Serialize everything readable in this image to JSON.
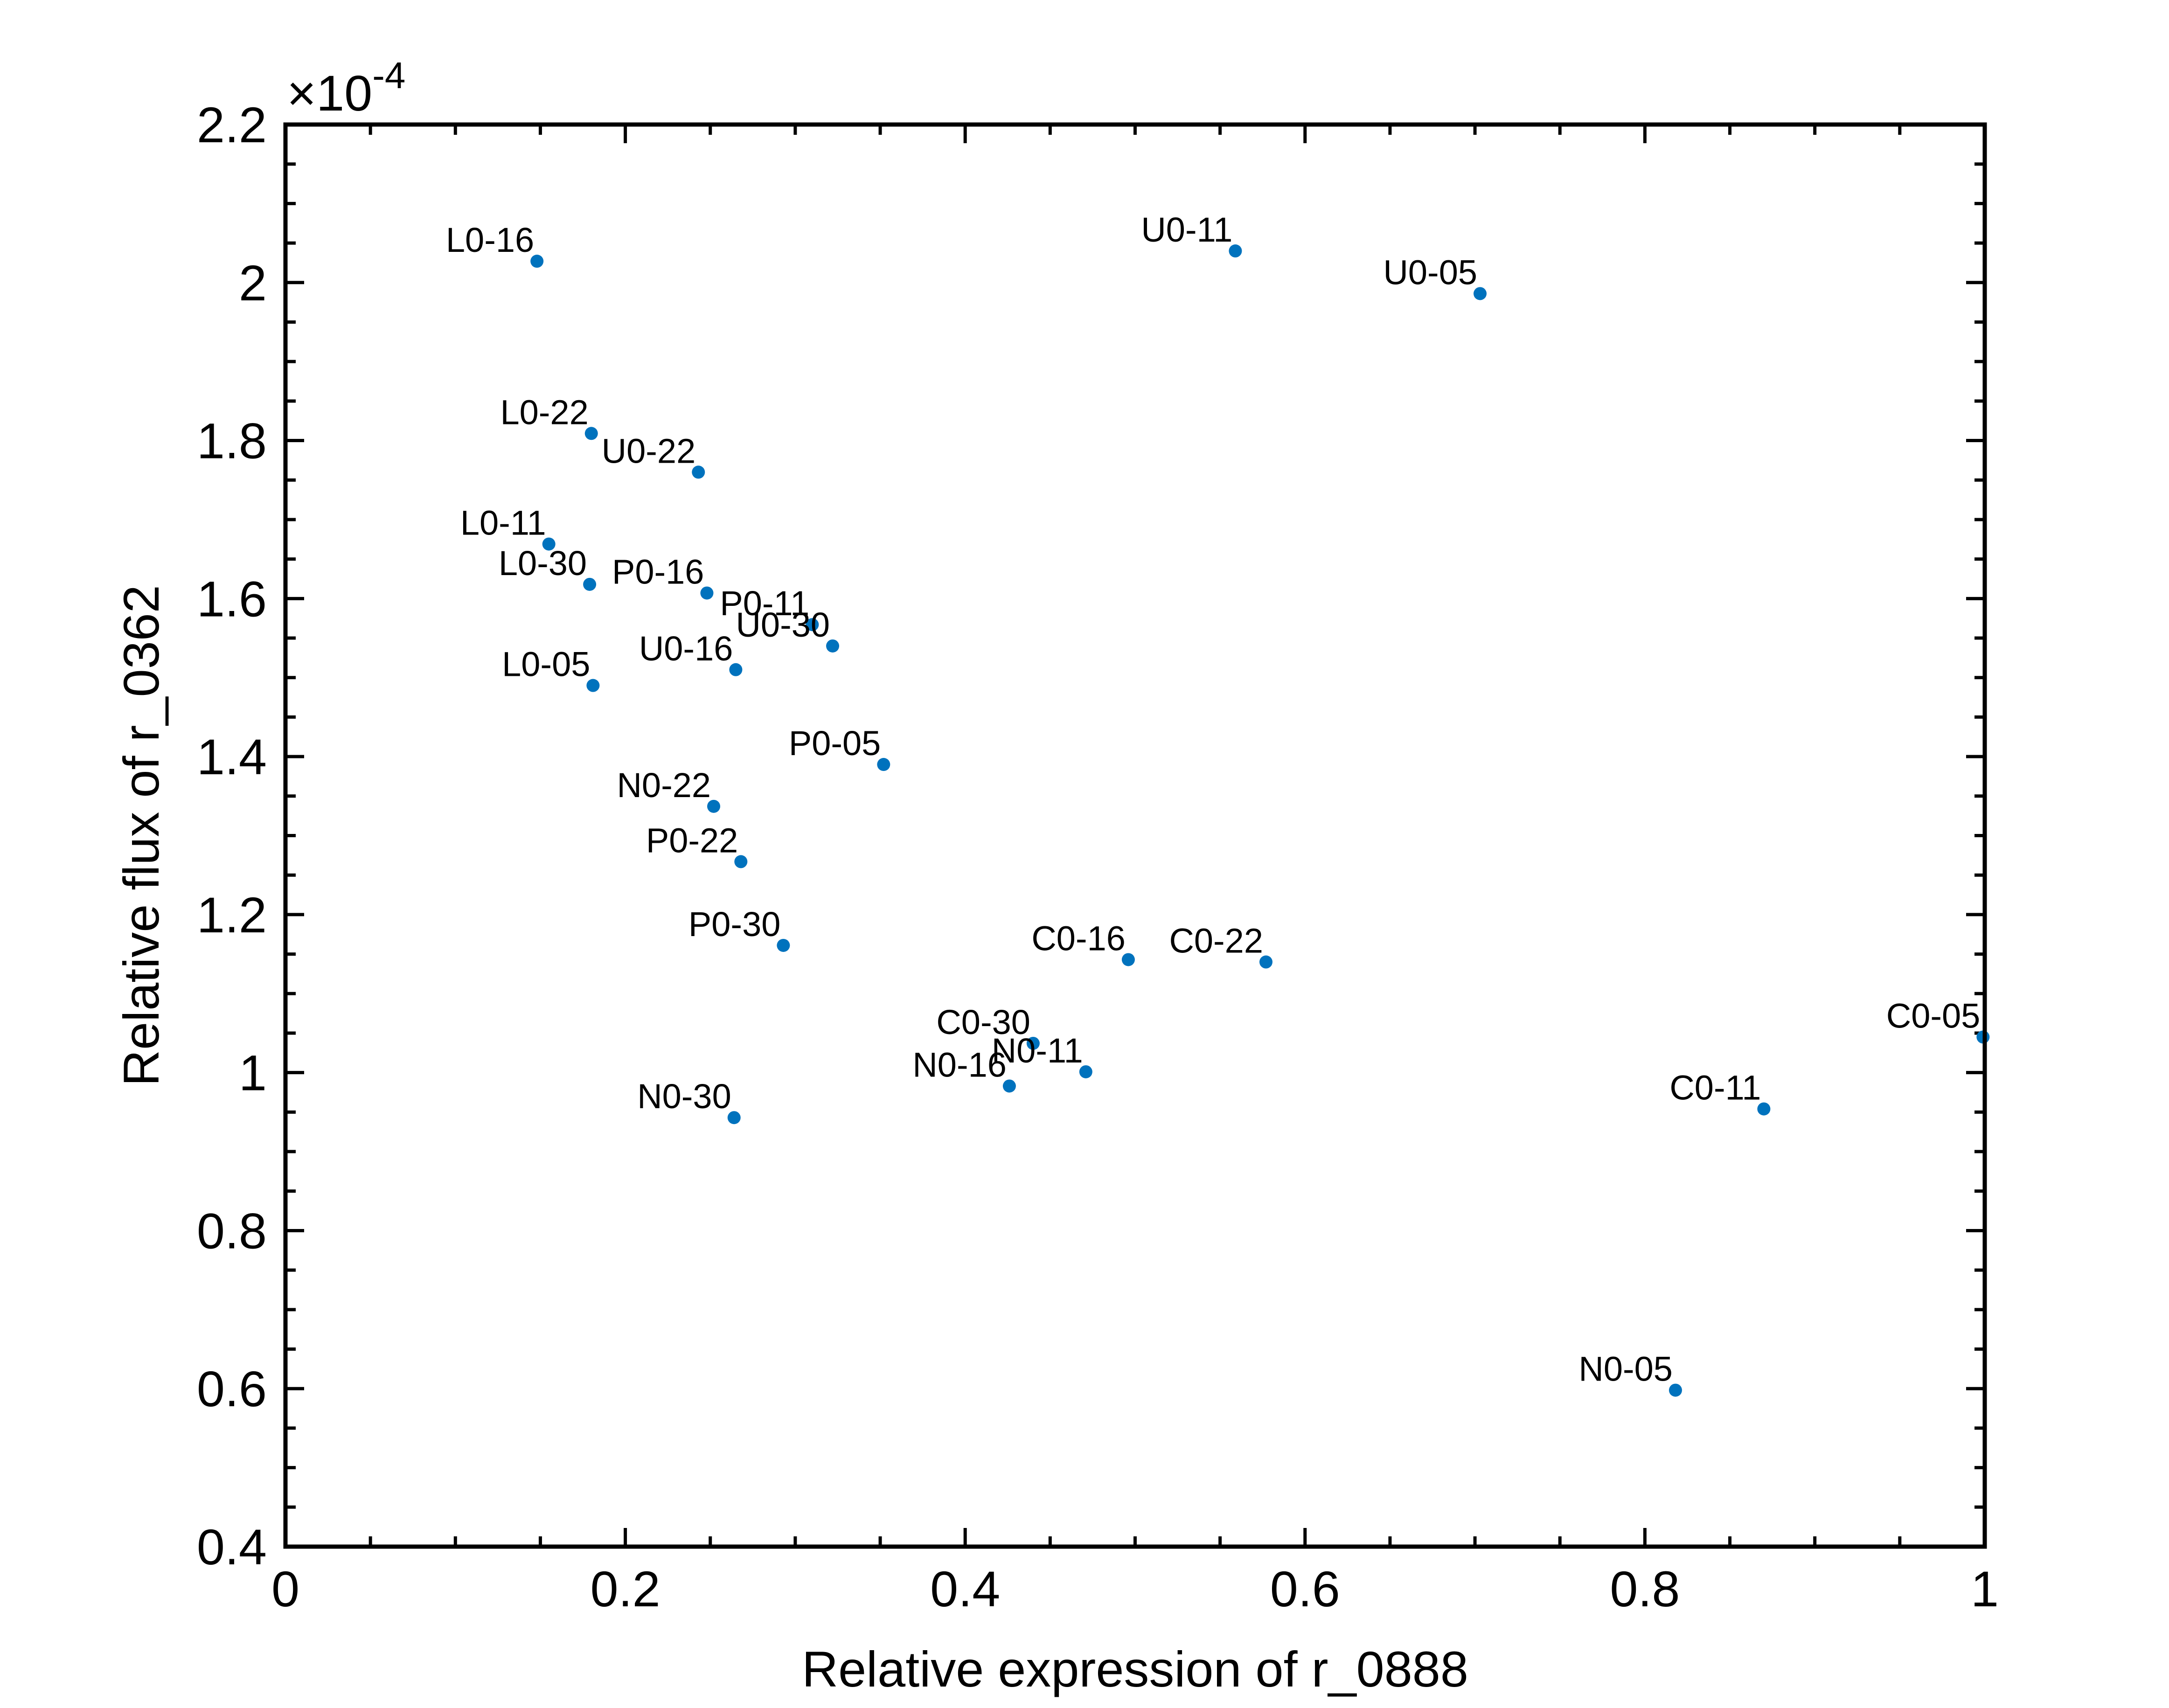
{
  "chart_data": {
    "type": "scatter",
    "title": "",
    "xlabel": "Relative expression of r_0888",
    "ylabel": "Relative flux of r_0362",
    "xlim": [
      0,
      1
    ],
    "ylim": [
      0.4,
      2.2
    ],
    "y_multiplier": "×10",
    "y_multiplier_exponent": "-4",
    "x_ticks": [
      "0",
      "0.2",
      "0.4",
      "0.6",
      "0.8",
      "1"
    ],
    "x_tick_values": [
      0,
      0.2,
      0.4,
      0.6,
      0.8,
      1.0
    ],
    "y_ticks": [
      "0.4",
      "0.6",
      "0.8",
      "1",
      "1.2",
      "1.4",
      "1.6",
      "1.8",
      "2",
      "2.2"
    ],
    "y_tick_values": [
      0.4,
      0.6,
      0.8,
      1.0,
      1.2,
      1.4,
      1.6,
      1.8,
      2.0,
      2.2
    ],
    "grid": false,
    "marker_color": "#0072BD",
    "points": [
      {
        "label": "L0-16",
        "x": 0.148,
        "y": 2.027
      },
      {
        "label": "U0-11",
        "x": 0.559,
        "y": 2.04
      },
      {
        "label": "U0-05",
        "x": 0.703,
        "y": 1.986
      },
      {
        "label": "L0-22",
        "x": 0.18,
        "y": 1.809
      },
      {
        "label": "U0-22",
        "x": 0.243,
        "y": 1.76
      },
      {
        "label": "L0-11",
        "x": 0.155,
        "y": 1.669
      },
      {
        "label": "L0-30",
        "x": 0.179,
        "y": 1.618
      },
      {
        "label": "P0-16",
        "x": 0.248,
        "y": 1.607
      },
      {
        "label": "P0-11",
        "x": 0.31,
        "y": 1.567
      },
      {
        "label": "U0-30",
        "x": 0.322,
        "y": 1.54
      },
      {
        "label": "U0-16",
        "x": 0.265,
        "y": 1.51
      },
      {
        "label": "L0-05",
        "x": 0.181,
        "y": 1.49
      },
      {
        "label": "P0-05",
        "x": 0.352,
        "y": 1.39
      },
      {
        "label": "N0-22",
        "x": 0.252,
        "y": 1.337
      },
      {
        "label": "P0-22",
        "x": 0.268,
        "y": 1.267
      },
      {
        "label": "P0-30",
        "x": 0.293,
        "y": 1.161
      },
      {
        "label": "C0-16",
        "x": 0.496,
        "y": 1.143
      },
      {
        "label": "C0-22",
        "x": 0.577,
        "y": 1.14
      },
      {
        "label": "C0-30",
        "x": 0.44,
        "y": 1.037
      },
      {
        "label": "N0-11",
        "x": 0.471,
        "y": 1.001
      },
      {
        "label": "N0-16",
        "x": 0.426,
        "y": 0.983
      },
      {
        "label": "N0-30",
        "x": 0.264,
        "y": 0.943
      },
      {
        "label": "C0-05",
        "x": 0.999,
        "y": 1.045
      },
      {
        "label": "C0-11",
        "x": 0.87,
        "y": 0.954
      },
      {
        "label": "N0-05",
        "x": 0.818,
        "y": 0.598
      }
    ]
  }
}
